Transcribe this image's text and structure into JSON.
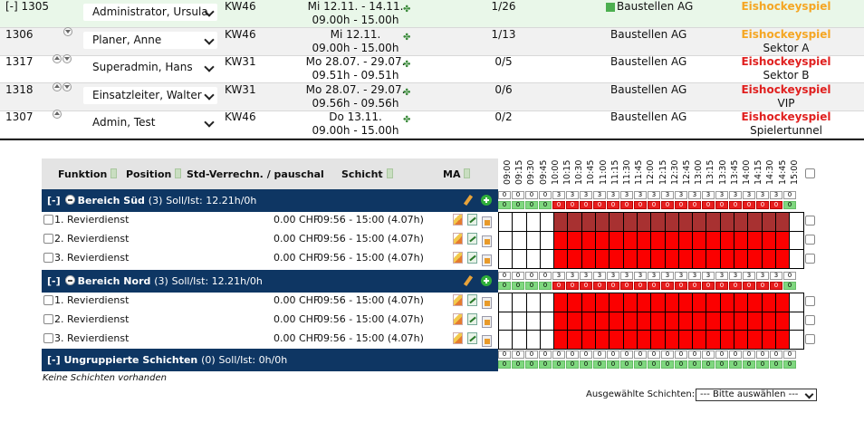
{
  "rows": [
    {
      "id": "[-] 1305",
      "arrows": [],
      "user": "Administrator, Ursula",
      "kw": "KW46",
      "date1": "Mi 12.11. - 14.11.",
      "date2": "09.00h - 15.00h",
      "count": "1/26",
      "company": "Baustellen AG",
      "event": "Eishockeyspiel",
      "event_color": "orange",
      "sub": "",
      "green_marker": true
    },
    {
      "id": "1306",
      "arrows": [
        "down"
      ],
      "user": "Planer, Anne",
      "kw": "KW46",
      "date1": "Mi 12.11.",
      "date2": "09.00h - 15.00h",
      "count": "1/13",
      "company": "Baustellen AG",
      "event": "Eishockeyspiel",
      "event_color": "orange",
      "sub": "Sektor A",
      "green_marker": false
    },
    {
      "id": "1317",
      "arrows": [
        "up",
        "down"
      ],
      "user": "Superadmin, Hans",
      "kw": "KW31",
      "date1": "Mo 28.07. - 29.07.",
      "date2": "09.51h - 09.51h",
      "count": "0/5",
      "company": "Baustellen AG",
      "event": "Eishockeyspiel",
      "event_color": "red",
      "sub": "Sektor B",
      "green_marker": false
    },
    {
      "id": "1318",
      "arrows": [
        "up",
        "down"
      ],
      "user": "Einsatzleiter, Walter",
      "kw": "KW31",
      "date1": "Mo 28.07. - 29.07.",
      "date2": "09.56h - 09.56h",
      "count": "0/6",
      "company": "Baustellen AG",
      "event": "Eishockeyspiel",
      "event_color": "red",
      "sub": "VIP",
      "green_marker": false
    },
    {
      "id": "1307",
      "arrows": [
        "up"
      ],
      "user": "Admin, Test",
      "kw": "KW46",
      "date1": "Do 13.11.",
      "date2": "09.00h - 15.00h",
      "count": "0/2",
      "company": "Baustellen AG",
      "event": "Eishockeyspiel",
      "event_color": "red",
      "sub": "Spielertunnel",
      "green_marker": false
    }
  ],
  "header": {
    "funktion": "Funktion",
    "position": "Position",
    "std": "Std-Verrechn. / pauschal",
    "schicht": "Schicht",
    "ma": "MA"
  },
  "times": [
    "09:00",
    "09:15",
    "09:30",
    "09:45",
    "10:00",
    "10:15",
    "10:30",
    "10:45",
    "11:00",
    "11:15",
    "11:30",
    "11:45",
    "12:00",
    "12:15",
    "12:30",
    "12:45",
    "13:00",
    "13:15",
    "13:30",
    "13:45",
    "14:00",
    "14:15",
    "14:30",
    "14:45",
    "15:00"
  ],
  "sections": [
    {
      "toggle": "[-]",
      "name": "Bereich Süd",
      "count": "(3)",
      "sollist": "Soll/Ist: 12.21h/0h",
      "shifts": [
        {
          "name": "1. Revierdienst",
          "chf": "0.00 CHF",
          "time": "09:56 - 15:00 (4.07h)"
        },
        {
          "name": "2. Revierdienst",
          "chf": "0.00 CHF",
          "time": "09:56 - 15:00 (4.07h)"
        },
        {
          "name": "3. Revierdienst",
          "chf": "0.00 CHF",
          "time": "09:56 - 15:00 (4.07h)"
        }
      ]
    },
    {
      "toggle": "[-]",
      "name": "Bereich Nord",
      "count": "(3)",
      "sollist": "Soll/Ist: 12.21h/0h",
      "shifts": [
        {
          "name": "1. Revierdienst",
          "chf": "0.00 CHF",
          "time": "09:56 - 15:00 (4.07h)"
        },
        {
          "name": "2. Revierdienst",
          "chf": "0.00 CHF",
          "time": "09:56 - 15:00 (4.07h)"
        },
        {
          "name": "3. Revierdienst",
          "chf": "0.00 CHF",
          "time": "09:56 - 15:00 (4.07h)"
        }
      ]
    },
    {
      "toggle": "[-]",
      "name": "Ungruppierte Schichten",
      "count": "(0)",
      "sollist": "Soll/Ist: 0h/0h",
      "shifts": []
    }
  ],
  "empty_note": "Keine Schichten vorhanden",
  "selection": {
    "label": "Ausgewählte Schichten:",
    "value": "--- Bitte auswählen ---"
  },
  "colors": {
    "section_bg": "#0e3663",
    "red": "#fb0000",
    "dark_red": "#a83131",
    "green": "#7fd87f",
    "orange": "#f5a623"
  }
}
